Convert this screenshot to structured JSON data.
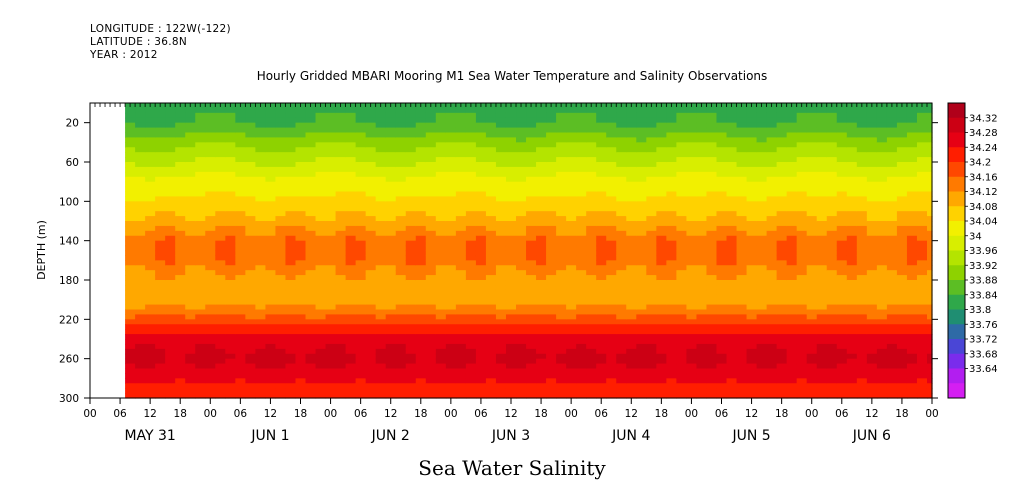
{
  "header": {
    "longitude": "LONGITUDE : 122W(-122)",
    "latitude": "LATITUDE : 36.8N",
    "year": "YEAR : 2012"
  },
  "chart_data": {
    "type": "heatmap",
    "title": "Hourly Gridded MBARI Mooring M1 Sea Water Temperature and Salinity Observations",
    "xlabel": "Sea Water Salinity",
    "ylabel": "DEPTH (m)",
    "ylim": [
      300,
      0
    ],
    "y_ticks": [
      "20",
      "60",
      "100",
      "140",
      "180",
      "220",
      "260",
      "300"
    ],
    "y_tick_values": [
      20,
      60,
      100,
      140,
      180,
      220,
      260,
      300
    ],
    "hour_ticks": [
      "00",
      "06",
      "12",
      "18",
      "00",
      "06",
      "12",
      "18",
      "00",
      "06",
      "12",
      "18",
      "00",
      "06",
      "12",
      "18",
      "00",
      "06",
      "12",
      "18",
      "00",
      "06",
      "12",
      "18",
      "00",
      "06",
      "12",
      "18",
      "00"
    ],
    "day_labels": [
      "MAY 31",
      "JUN  1",
      "JUN  2",
      "JUN  3",
      "JUN  4",
      "JUN  5",
      "JUN  6"
    ],
    "x_range_hours": [
      0,
      168
    ],
    "data_start_hour": 7,
    "colorbar_labels": [
      "34.32",
      "34.28",
      "34.24",
      "34.2",
      "34.16",
      "34.12",
      "34.08",
      "34.04",
      "34",
      "33.96",
      "33.92",
      "33.88",
      "33.84",
      "33.8",
      "33.76",
      "33.72",
      "33.68",
      "33.64"
    ],
    "colorbar_colors": [
      "#b0001a",
      "#cc0014",
      "#e60014",
      "#ff1e00",
      "#ff4800",
      "#ff7a00",
      "#ffa800",
      "#ffd200",
      "#f2f000",
      "#d8ee00",
      "#b4e400",
      "#8ed200",
      "#5cbe24",
      "#2fa84a",
      "#1f8e72",
      "#2e6aa6",
      "#4a46d6",
      "#7a2cec",
      "#b21ef0",
      "#d41ff2"
    ],
    "depth_profile": [
      {
        "depth": 5,
        "value": 33.86
      },
      {
        "depth": 20,
        "value": 33.87
      },
      {
        "depth": 40,
        "value": 33.93
      },
      {
        "depth": 60,
        "value": 33.98
      },
      {
        "depth": 80,
        "value": 34.03
      },
      {
        "depth": 100,
        "value": 34.06
      },
      {
        "depth": 120,
        "value": 34.1
      },
      {
        "depth": 140,
        "value": 34.15
      },
      {
        "depth": 160,
        "value": 34.15
      },
      {
        "depth": 180,
        "value": 34.11
      },
      {
        "depth": 200,
        "value": 34.1
      },
      {
        "depth": 220,
        "value": 34.17
      },
      {
        "depth": 240,
        "value": 34.25
      },
      {
        "depth": 260,
        "value": 34.28
      },
      {
        "depth": 280,
        "value": 34.24
      },
      {
        "depth": 300,
        "value": 34.2
      }
    ]
  }
}
